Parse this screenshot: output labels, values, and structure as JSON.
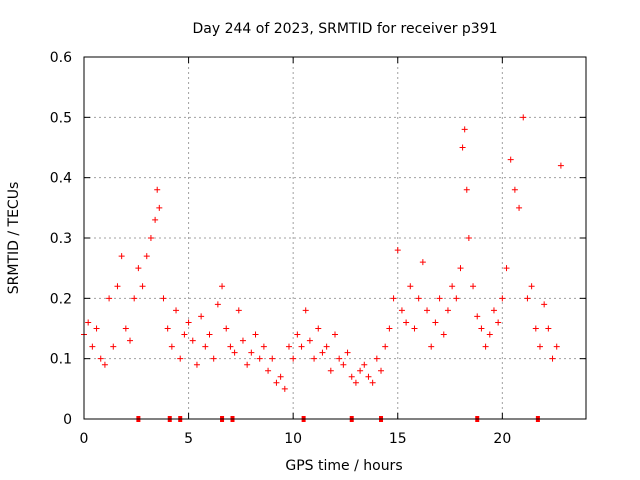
{
  "chart_data": {
    "type": "scatter",
    "title": "Day 244 of 2023, SRMTID for receiver p391",
    "xlabel": "GPS time / hours",
    "ylabel": "SRMTID / TECUs",
    "xlim": [
      0,
      24
    ],
    "ylim": [
      0,
      0.6
    ],
    "xticks": [
      0,
      5,
      10,
      15,
      20
    ],
    "yticks": [
      0,
      0.1,
      0.2,
      0.3,
      0.4,
      0.5,
      0.6
    ],
    "xtick_labels": [
      "0",
      "5",
      "10",
      "15",
      "20"
    ],
    "ytick_labels": [
      "0",
      "0.1",
      "0.2",
      "0.3",
      "0.4",
      "0.5",
      "0.6"
    ],
    "grid": true,
    "marker": "+",
    "color": "#ff0000",
    "series": [
      {
        "name": "SRMTID",
        "x": [
          0.0,
          0.2,
          0.4,
          0.6,
          0.8,
          1.0,
          1.2,
          1.4,
          1.6,
          1.8,
          2.0,
          2.2,
          2.4,
          2.6,
          2.8,
          3.0,
          3.2,
          3.4,
          3.5,
          3.6,
          3.8,
          4.0,
          4.2,
          4.4,
          4.6,
          4.8,
          5.0,
          5.2,
          5.4,
          5.6,
          5.8,
          6.0,
          6.2,
          6.4,
          6.6,
          6.8,
          7.0,
          7.2,
          7.4,
          7.6,
          7.8,
          8.0,
          8.2,
          8.4,
          8.6,
          8.8,
          9.0,
          9.2,
          9.4,
          9.6,
          9.8,
          10.0,
          10.2,
          10.4,
          10.6,
          10.8,
          11.0,
          11.2,
          11.4,
          11.6,
          11.8,
          12.0,
          12.2,
          12.4,
          12.6,
          12.8,
          13.0,
          13.2,
          13.4,
          13.6,
          13.8,
          14.0,
          14.2,
          14.4,
          14.6,
          14.8,
          15.0,
          15.2,
          15.4,
          15.6,
          15.8,
          16.0,
          16.2,
          16.4,
          16.6,
          16.8,
          17.0,
          17.2,
          17.4,
          17.6,
          17.8,
          18.0,
          18.1,
          18.2,
          18.3,
          18.4,
          18.6,
          18.8,
          19.0,
          19.2,
          19.4,
          19.6,
          19.8,
          20.0,
          20.2,
          20.4,
          20.6,
          20.8,
          21.0,
          21.2,
          21.4,
          21.6,
          21.8,
          22.0,
          22.2,
          22.4,
          22.6,
          22.8
        ],
        "values": [
          0.14,
          0.16,
          0.12,
          0.15,
          0.1,
          0.09,
          0.2,
          0.12,
          0.22,
          0.27,
          0.15,
          0.13,
          0.2,
          0.25,
          0.22,
          0.27,
          0.3,
          0.33,
          0.38,
          0.35,
          0.2,
          0.15,
          0.12,
          0.18,
          0.1,
          0.14,
          0.16,
          0.13,
          0.09,
          0.17,
          0.12,
          0.14,
          0.1,
          0.19,
          0.22,
          0.15,
          0.12,
          0.11,
          0.18,
          0.13,
          0.09,
          0.11,
          0.14,
          0.1,
          0.12,
          0.08,
          0.1,
          0.06,
          0.07,
          0.05,
          0.12,
          0.1,
          0.14,
          0.12,
          0.18,
          0.13,
          0.1,
          0.15,
          0.11,
          0.12,
          0.08,
          0.14,
          0.1,
          0.09,
          0.11,
          0.07,
          0.06,
          0.08,
          0.09,
          0.07,
          0.06,
          0.1,
          0.08,
          0.12,
          0.15,
          0.2,
          0.28,
          0.18,
          0.16,
          0.22,
          0.15,
          0.2,
          0.26,
          0.18,
          0.12,
          0.16,
          0.2,
          0.14,
          0.18,
          0.22,
          0.2,
          0.25,
          0.45,
          0.48,
          0.38,
          0.3,
          0.22,
          0.17,
          0.15,
          0.12,
          0.14,
          0.18,
          0.16,
          0.2,
          0.25,
          0.43,
          0.38,
          0.35,
          0.5,
          0.2,
          0.22,
          0.15,
          0.12,
          0.19,
          0.15,
          0.1,
          0.12,
          0.42
        ]
      }
    ],
    "slip_markers_x": [
      2.6,
      4.1,
      4.6,
      6.6,
      7.1,
      10.5,
      12.8,
      14.2,
      18.8,
      21.7
    ]
  }
}
